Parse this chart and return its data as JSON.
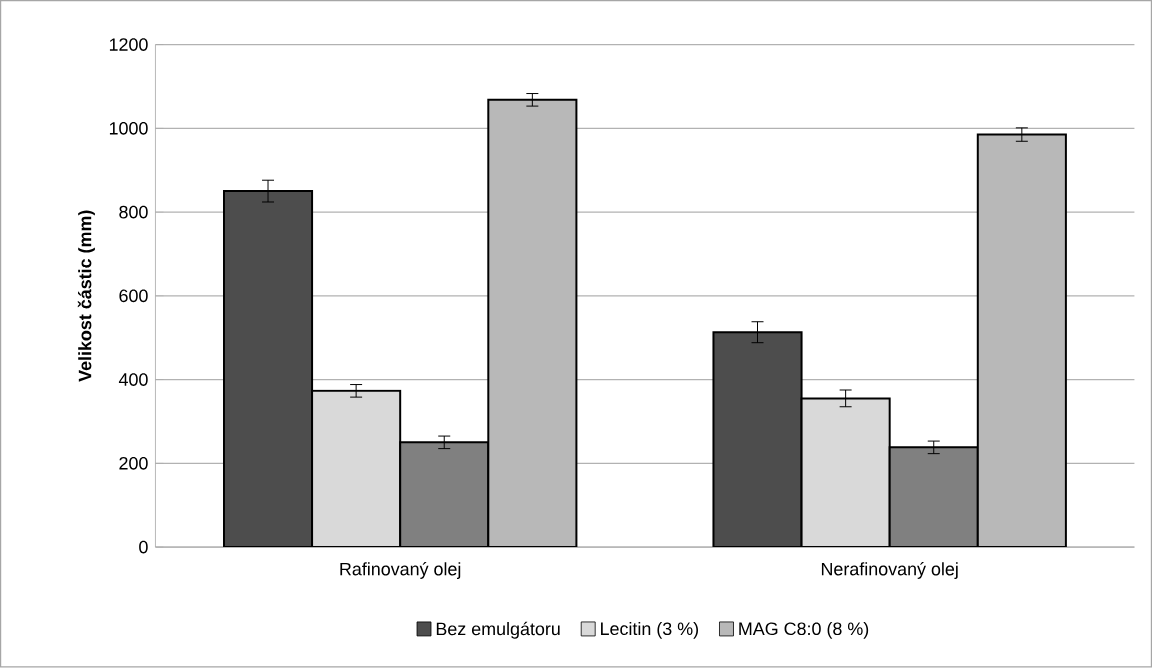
{
  "chart_data": {
    "type": "bar",
    "ylabel": "**Velikost částic (mm)**",
    "categories": [
      "Rafinovaný olej",
      "Nerafinovaný olej"
    ],
    "series": [
      {
        "name": "Bez emulgátoru",
        "color": "#4d4d4d",
        "values": [
          850,
          513
        ],
        "errors": [
          26,
          25
        ]
      },
      {
        "name": "Lecitin (3 %)",
        "color": "#d9d9d9",
        "values": [
          373,
          355
        ],
        "errors": [
          15,
          20
        ]
      },
      {
        "color": "#808080",
        "values": [
          250,
          238
        ],
        "errors": [
          15,
          15
        ]
      },
      {
        "name": "MAG C8:0 (8 %)",
        "color": "#b8b8b8",
        "values": [
          1068,
          985
        ],
        "errors": [
          15,
          16
        ]
      }
    ],
    "ylim": [
      0,
      1200
    ],
    "yticks": [
      0,
      200,
      400,
      600,
      800,
      1000,
      1200
    ],
    "grid": "y",
    "legend": "bottom"
  }
}
